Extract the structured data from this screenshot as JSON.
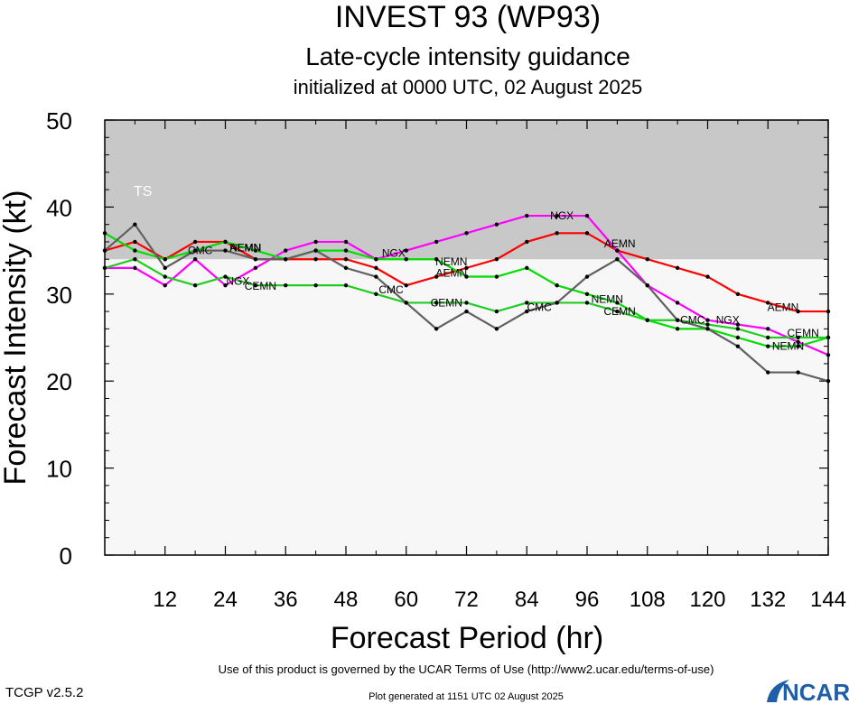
{
  "title": "INVEST 93 (WP93)",
  "subtitle": "Late-cycle intensity guidance",
  "init_line": "initialized at 0000 UTC, 02 August 2025",
  "terms": "Use of this product is governed by the UCAR Terms of Use (http://www2.ucar.edu/terms-of-use)",
  "version": "TCGP v2.5.2",
  "generated": "Plot generated at 1151 UTC   02 August 2025",
  "logo_text": "NCAR",
  "colors": {
    "band": "#c8c8c8",
    "plot_bg": "#f7f7f7",
    "AEMN": "#ff0000",
    "NGX": "#ff00ff",
    "NEMN": "#00dd00",
    "CEMN": "#22cc22",
    "CMC": "#606060",
    "logo": "#1f5fa8"
  },
  "chart_data": {
    "type": "line",
    "xlabel": "Forecast Period (hr)",
    "ylabel": "Forecast Intensity (kt)",
    "xlim": [
      0,
      144
    ],
    "ylim": [
      0,
      50
    ],
    "xticks": [
      12,
      24,
      36,
      48,
      60,
      72,
      84,
      96,
      108,
      120,
      132,
      144
    ],
    "yticks": [
      0,
      10,
      20,
      30,
      40,
      50
    ],
    "band": {
      "label": "TS",
      "y_from": 34,
      "y_to": 50
    },
    "series": [
      {
        "name": "AEMN",
        "x": [
          0,
          6,
          12,
          18,
          24,
          30,
          36,
          42,
          48,
          54,
          60,
          66,
          72,
          78,
          84,
          90,
          96,
          102,
          108,
          114,
          120,
          126,
          132,
          138,
          144
        ],
        "values": [
          35,
          36,
          34,
          36,
          36,
          34,
          34,
          34,
          34,
          33,
          31,
          32,
          33,
          34,
          36,
          37,
          37,
          35,
          34,
          33,
          32,
          30,
          29,
          28,
          28
        ]
      },
      {
        "name": "NGX",
        "x": [
          0,
          6,
          12,
          18,
          24,
          30,
          36,
          42,
          48,
          54,
          60,
          66,
          72,
          78,
          84,
          90,
          96,
          102,
          108,
          114,
          120,
          126,
          132,
          138,
          144
        ],
        "values": [
          33,
          33,
          31,
          34,
          31,
          33,
          35,
          36,
          36,
          34,
          35,
          36,
          37,
          38,
          39,
          39,
          39,
          35,
          31,
          29,
          27,
          26.5,
          26,
          24.5,
          23
        ]
      },
      {
        "name": "NEMN",
        "x": [
          0,
          6,
          12,
          18,
          24,
          30,
          36,
          42,
          48,
          54,
          60,
          66,
          72,
          78,
          84,
          90,
          96,
          102,
          108,
          114,
          120,
          126,
          132,
          138,
          144
        ],
        "values": [
          37,
          35,
          34,
          35,
          36,
          35,
          34,
          35,
          35,
          34,
          34,
          34,
          32,
          32,
          33,
          31,
          30,
          29,
          27,
          26,
          26,
          25,
          24,
          24,
          25
        ]
      },
      {
        "name": "CEMN",
        "x": [
          0,
          6,
          12,
          18,
          24,
          30,
          36,
          42,
          48,
          54,
          60,
          66,
          72,
          78,
          84,
          90,
          96,
          102,
          108,
          114,
          120,
          126,
          132,
          138,
          144
        ],
        "values": [
          33,
          34,
          32,
          31,
          32,
          31,
          31,
          31,
          31,
          30,
          29,
          29,
          29,
          28,
          29,
          29,
          29,
          28,
          27,
          27,
          26.5,
          26,
          25,
          25,
          25
        ]
      },
      {
        "name": "CMC",
        "x": [
          0,
          6,
          12,
          18,
          24,
          30,
          36,
          42,
          48,
          54,
          60,
          66,
          72,
          78,
          84,
          90,
          96,
          102,
          108,
          114,
          120,
          126,
          132,
          138,
          144
        ],
        "values": [
          35,
          38,
          33,
          35,
          35,
          34,
          34,
          35,
          33,
          32,
          29,
          26,
          28,
          26,
          28,
          29,
          32,
          34,
          31,
          27,
          26,
          24,
          21,
          21,
          20
        ]
      }
    ],
    "labels": [
      {
        "text": "AEMN",
        "series": "AEMN",
        "x": 28,
        "y": 35.3
      },
      {
        "text": "AEMN",
        "series": "AEMN",
        "x": 69,
        "y": 32.4
      },
      {
        "text": "AEMN",
        "series": "AEMN",
        "x": 102.5,
        "y": 35.8
      },
      {
        "text": "AEMN",
        "series": "AEMN",
        "x": 135,
        "y": 28.5
      },
      {
        "text": "NGX",
        "series": "NGX",
        "x": 26.5,
        "y": 31.5
      },
      {
        "text": "NGX",
        "series": "NGX",
        "x": 57.5,
        "y": 34.7
      },
      {
        "text": "NGX",
        "series": "NGX",
        "x": 91,
        "y": 39
      },
      {
        "text": "NGX",
        "series": "NGX",
        "x": 124,
        "y": 27
      },
      {
        "text": "NEMN",
        "series": "NEMN",
        "x": 28,
        "y": 35.3
      },
      {
        "text": "NEMN",
        "series": "NEMN",
        "x": 69,
        "y": 33.7
      },
      {
        "text": "NEMN",
        "series": "NEMN",
        "x": 100,
        "y": 29.4
      },
      {
        "text": "NEMN",
        "series": "NEMN",
        "x": 136,
        "y": 24
      },
      {
        "text": "CEMN",
        "series": "CEMN",
        "x": 31,
        "y": 30.9
      },
      {
        "text": "CEMN",
        "series": "CEMN",
        "x": 68,
        "y": 29
      },
      {
        "text": "CEMN",
        "series": "CEMN",
        "x": 102.5,
        "y": 28
      },
      {
        "text": "CEMN",
        "series": "CEMN",
        "x": 139,
        "y": 25.5
      },
      {
        "text": "CMC",
        "series": "CMC",
        "x": 19,
        "y": 35
      },
      {
        "text": "CMC",
        "series": "CMC",
        "x": 57,
        "y": 30.5
      },
      {
        "text": "CMC",
        "series": "CMC",
        "x": 86.5,
        "y": 28.5
      },
      {
        "text": "CMC",
        "series": "CMC",
        "x": 117,
        "y": 27
      }
    ]
  }
}
